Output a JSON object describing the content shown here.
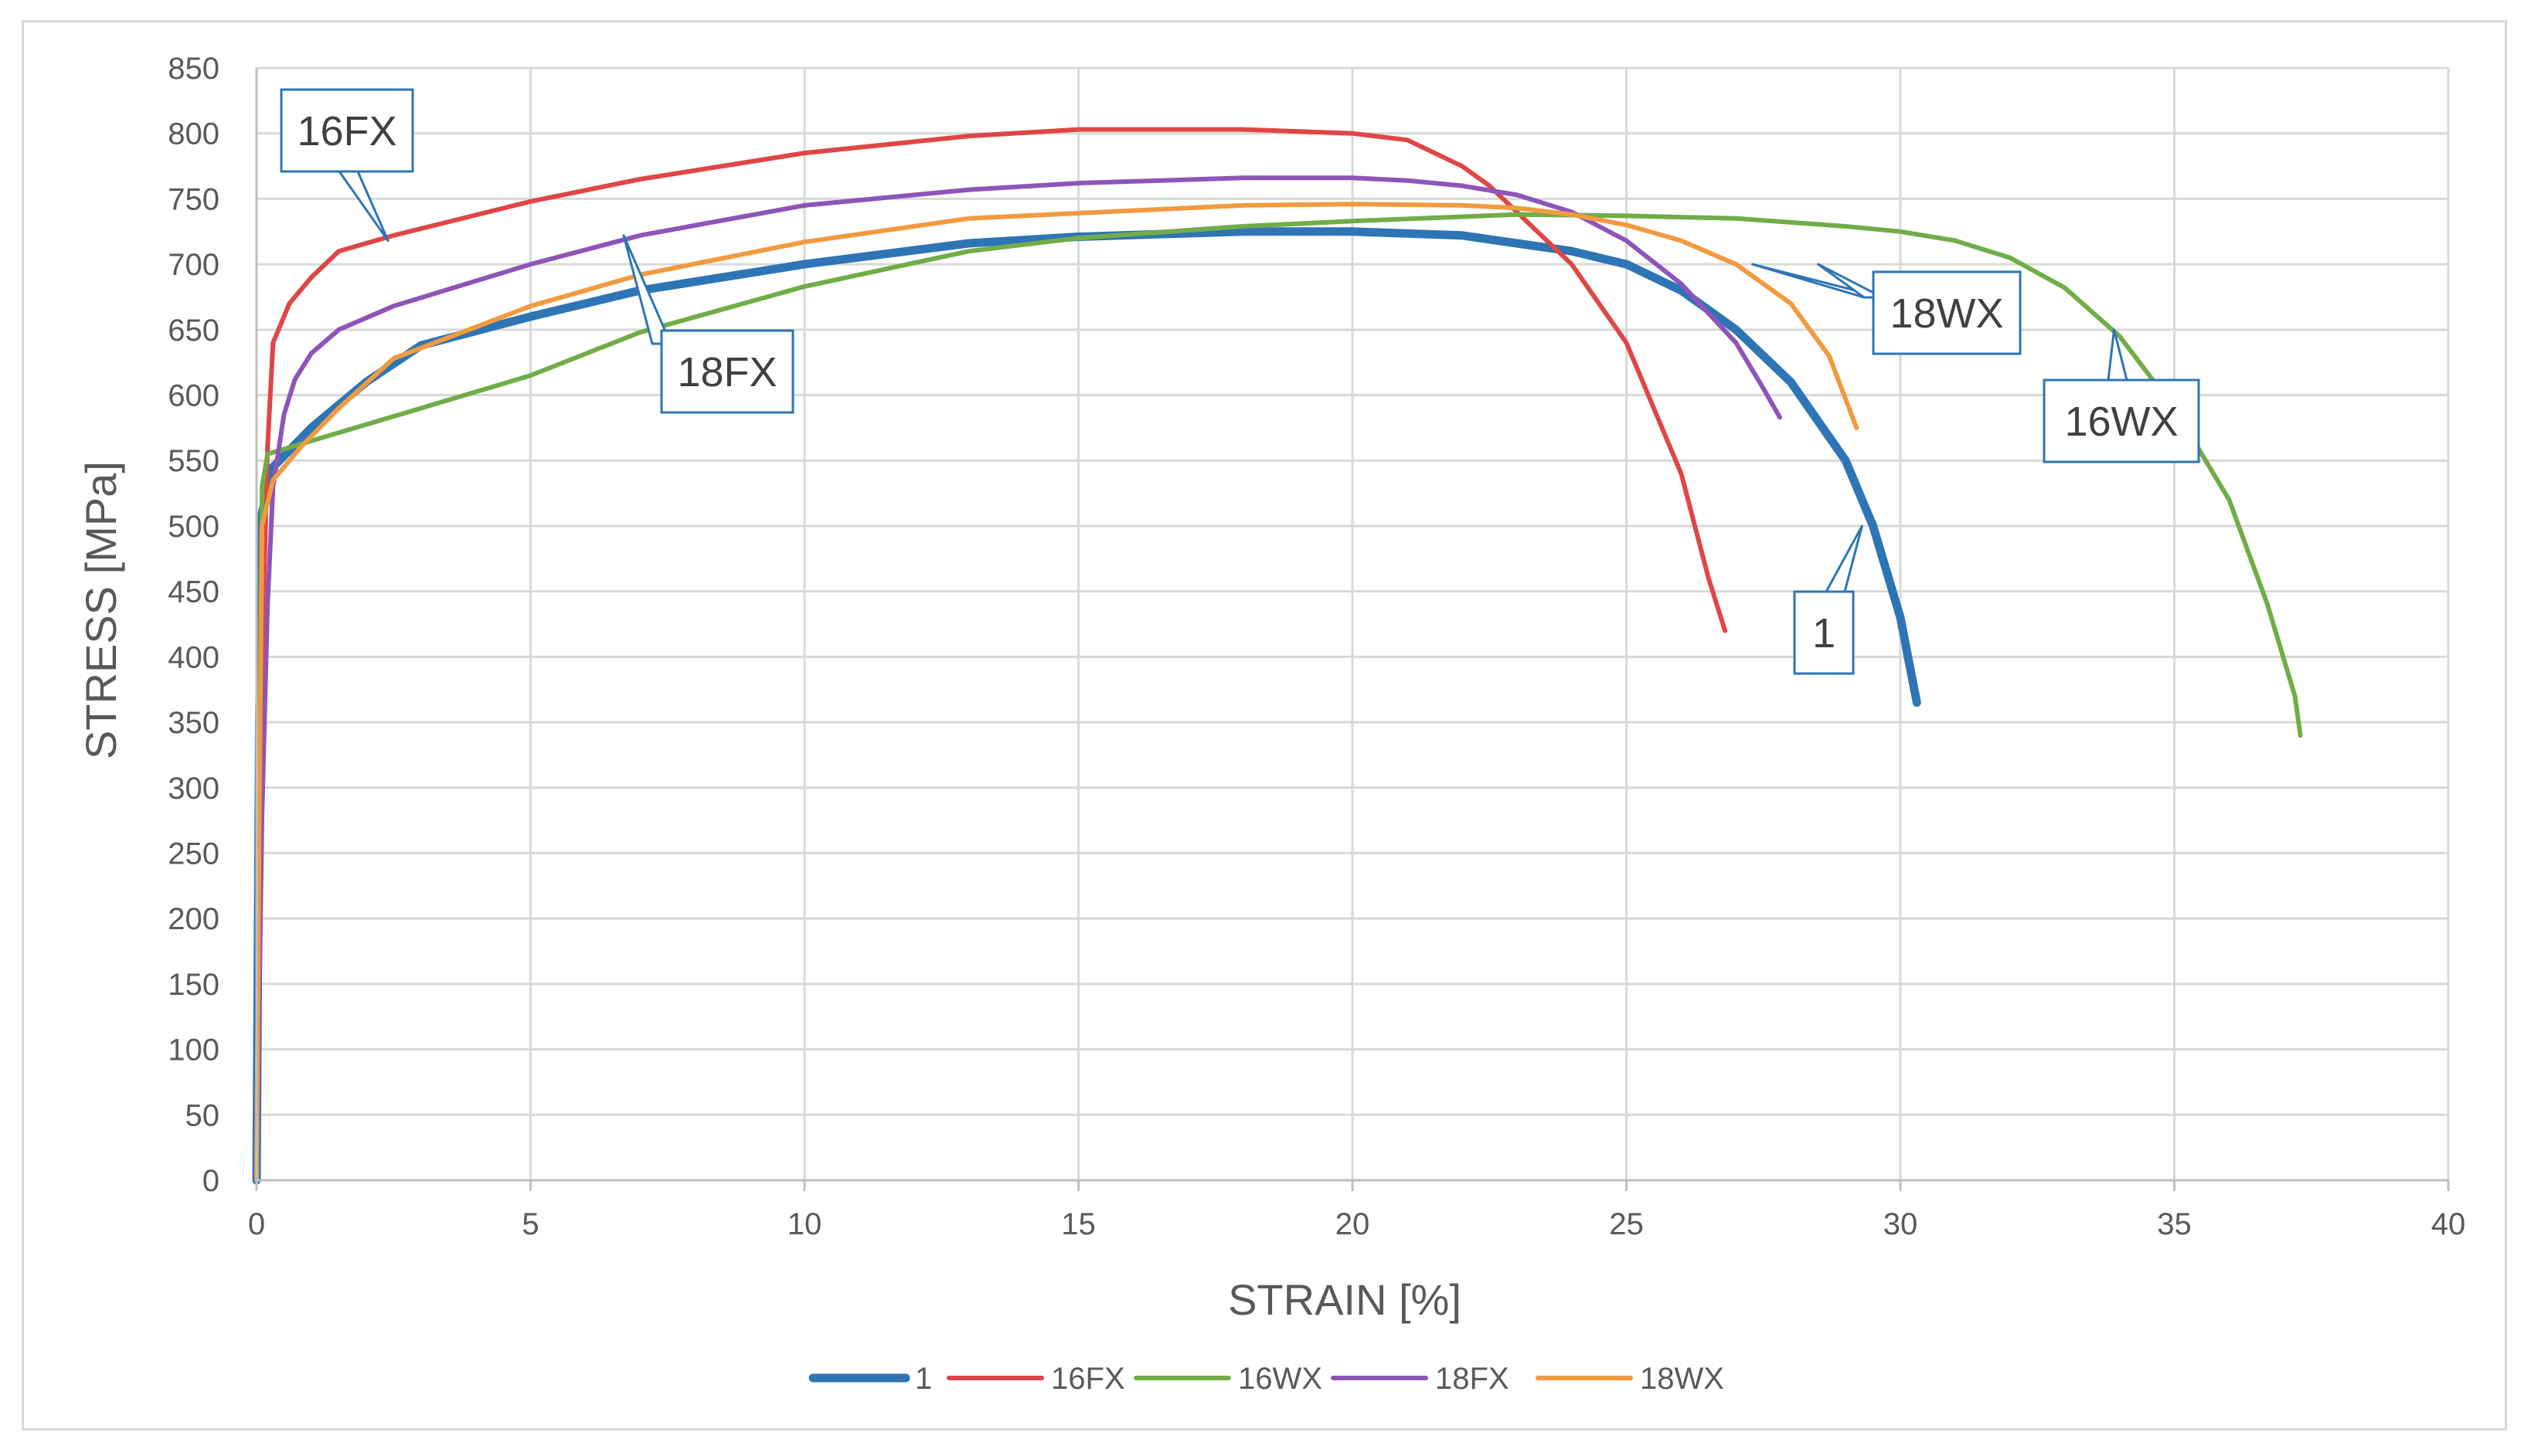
{
  "chart_data": {
    "type": "line",
    "title": "",
    "xlabel": "STRAIN [%]",
    "ylabel": "STRESS [MPa]",
    "xlim": [
      0,
      40
    ],
    "ylim": [
      0,
      850
    ],
    "x_ticks": [
      0,
      5,
      10,
      15,
      20,
      25,
      30,
      35,
      40
    ],
    "y_ticks": [
      0,
      50,
      100,
      150,
      200,
      250,
      300,
      350,
      400,
      450,
      500,
      550,
      600,
      650,
      700,
      750,
      800,
      850
    ],
    "grid": true,
    "legend_position": "bottom",
    "series": [
      {
        "name": "1",
        "color": "#2e75b6",
        "points": [
          [
            0,
            0
          ],
          [
            0.05,
            350
          ],
          [
            0.1,
            510
          ],
          [
            0.3,
            545
          ],
          [
            1,
            575
          ],
          [
            2,
            610
          ],
          [
            3,
            638
          ],
          [
            5,
            660
          ],
          [
            7,
            680
          ],
          [
            10,
            700
          ],
          [
            13,
            716
          ],
          [
            15,
            721
          ],
          [
            18,
            725
          ],
          [
            20,
            725
          ],
          [
            22,
            722
          ],
          [
            23,
            716
          ],
          [
            24,
            710
          ],
          [
            25,
            700
          ],
          [
            26,
            680
          ],
          [
            27,
            650
          ],
          [
            28,
            610
          ],
          [
            29,
            550
          ],
          [
            29.5,
            500
          ],
          [
            30,
            430
          ],
          [
            30.3,
            365
          ]
        ]
      },
      {
        "name": "16FX",
        "color": "#e04646",
        "points": [
          [
            0,
            0
          ],
          [
            0.1,
            400
          ],
          [
            0.2,
            560
          ],
          [
            0.3,
            640
          ],
          [
            0.6,
            670
          ],
          [
            1,
            690
          ],
          [
            1.5,
            710
          ],
          [
            2.5,
            722
          ],
          [
            5,
            748
          ],
          [
            7,
            765
          ],
          [
            10,
            785
          ],
          [
            13,
            798
          ],
          [
            15,
            803
          ],
          [
            18,
            803
          ],
          [
            20,
            800
          ],
          [
            21,
            795
          ],
          [
            22,
            775
          ],
          [
            22.5,
            760
          ],
          [
            23,
            740
          ],
          [
            24,
            700
          ],
          [
            25,
            640
          ],
          [
            26,
            540
          ],
          [
            26.5,
            460
          ],
          [
            26.8,
            420
          ]
        ]
      },
      {
        "name": "16WX",
        "color": "#70ad47",
        "points": [
          [
            0,
            0
          ],
          [
            0.05,
            300
          ],
          [
            0.1,
            530
          ],
          [
            0.2,
            555
          ],
          [
            1,
            565
          ],
          [
            3,
            590
          ],
          [
            5,
            615
          ],
          [
            7,
            648
          ],
          [
            10,
            683
          ],
          [
            13,
            710
          ],
          [
            15,
            720
          ],
          [
            18,
            729
          ],
          [
            20,
            733
          ],
          [
            23,
            738
          ],
          [
            25,
            737
          ],
          [
            27,
            735
          ],
          [
            29,
            729
          ],
          [
            30,
            725
          ],
          [
            31,
            718
          ],
          [
            32,
            705
          ],
          [
            33,
            682
          ],
          [
            34,
            645
          ],
          [
            35,
            590
          ],
          [
            36,
            520
          ],
          [
            36.7,
            440
          ],
          [
            37.2,
            370
          ],
          [
            37.3,
            340
          ]
        ]
      },
      {
        "name": "18FX",
        "color": "#8e55b8",
        "points": [
          [
            0,
            0
          ],
          [
            0.1,
            280
          ],
          [
            0.2,
            440
          ],
          [
            0.3,
            530
          ],
          [
            0.5,
            585
          ],
          [
            0.7,
            612
          ],
          [
            1,
            632
          ],
          [
            1.5,
            650
          ],
          [
            2.5,
            668
          ],
          [
            5,
            700
          ],
          [
            7,
            722
          ],
          [
            10,
            745
          ],
          [
            13,
            757
          ],
          [
            15,
            762
          ],
          [
            18,
            766
          ],
          [
            20,
            766
          ],
          [
            21,
            764
          ],
          [
            22,
            760
          ],
          [
            23,
            753
          ],
          [
            24,
            740
          ],
          [
            25,
            718
          ],
          [
            26,
            685
          ],
          [
            27,
            640
          ],
          [
            27.5,
            605
          ],
          [
            27.8,
            583
          ]
        ]
      },
      {
        "name": "18WX",
        "color": "#f29a3f",
        "points": [
          [
            0,
            0
          ],
          [
            0.05,
            280
          ],
          [
            0.1,
            500
          ],
          [
            0.3,
            535
          ],
          [
            0.8,
            560
          ],
          [
            1.5,
            590
          ],
          [
            2.5,
            628
          ],
          [
            5,
            668
          ],
          [
            7,
            692
          ],
          [
            10,
            717
          ],
          [
            13,
            735
          ],
          [
            15,
            739
          ],
          [
            18,
            745
          ],
          [
            20,
            746
          ],
          [
            22,
            745
          ],
          [
            23,
            743
          ],
          [
            24,
            738
          ],
          [
            25,
            730
          ],
          [
            26,
            718
          ],
          [
            27,
            700
          ],
          [
            28,
            670
          ],
          [
            28.7,
            630
          ],
          [
            29.2,
            575
          ]
        ]
      }
    ],
    "annotations": [
      {
        "text": "16FX",
        "series": "16FX",
        "target": [
          2.4,
          718
        ]
      },
      {
        "text": "18FX",
        "series": "18FX",
        "target": [
          6.7,
          722
        ]
      },
      {
        "text": "18WX",
        "series": "18WX",
        "targets": [
          [
            27.3,
            700
          ],
          [
            28.5,
            700
          ]
        ]
      },
      {
        "text": "16WX",
        "series": "16WX",
        "target": [
          33.9,
          650
        ]
      },
      {
        "text": "1",
        "series": "1",
        "target": [
          29.3,
          500
        ]
      }
    ]
  },
  "colors": {
    "grid": "#d9d9d9",
    "axis": "#bfbfbf",
    "text": "#595959",
    "callout_border": "#2e75b6"
  }
}
